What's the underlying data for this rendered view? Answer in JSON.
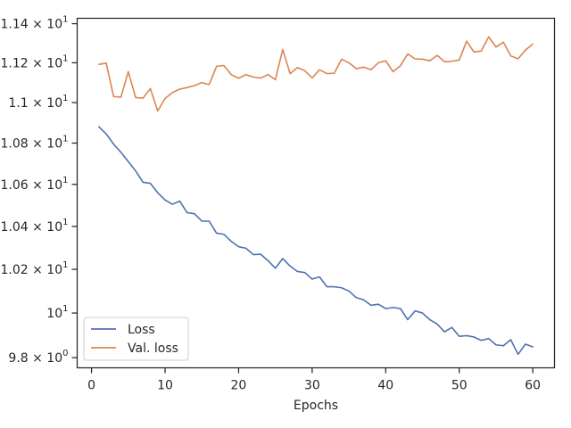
{
  "chart_data": {
    "type": "line",
    "xlabel": "Epochs",
    "ylabel": "",
    "title": "",
    "yscale": "log",
    "grid": false,
    "legend_position": "lower-left",
    "xlim": [
      -1.95,
      62.95
    ],
    "ylim": [
      9.755,
      11.428
    ],
    "x_ticks": [
      0,
      10,
      20,
      30,
      40,
      50,
      60
    ],
    "x_tick_labels": [
      "0",
      "10",
      "20",
      "30",
      "40",
      "50",
      "60"
    ],
    "y_ticks": [
      9.8,
      10.0,
      10.2,
      10.4,
      10.6,
      10.8,
      11.0,
      11.2,
      11.4
    ],
    "y_tick_labels": [
      {
        "mant": "9.8",
        "exp": "0"
      },
      {
        "mant": "",
        "exp": "1",
        "plain": "10"
      },
      {
        "mant": "1.02",
        "exp": "1"
      },
      {
        "mant": "1.04",
        "exp": "1"
      },
      {
        "mant": "1.06",
        "exp": "1"
      },
      {
        "mant": "1.08",
        "exp": "1"
      },
      {
        "mant": "1.1",
        "exp": "1"
      },
      {
        "mant": "1.12",
        "exp": "1"
      },
      {
        "mant": "1.14",
        "exp": "1"
      }
    ],
    "x": [
      1,
      2,
      3,
      4,
      5,
      6,
      7,
      8,
      9,
      10,
      11,
      12,
      13,
      14,
      15,
      16,
      17,
      18,
      19,
      20,
      21,
      22,
      23,
      24,
      25,
      26,
      27,
      28,
      29,
      30,
      31,
      32,
      33,
      34,
      35,
      36,
      37,
      38,
      39,
      40,
      41,
      42,
      43,
      44,
      45,
      46,
      47,
      48,
      49,
      50,
      51,
      52,
      53,
      54,
      55,
      56,
      57,
      58,
      59,
      60
    ],
    "series": [
      {
        "name": "Loss",
        "color": "#4c72b0",
        "values": [
          10.88,
          10.845,
          10.795,
          10.755,
          10.71,
          10.665,
          10.61,
          10.605,
          10.56,
          10.525,
          10.505,
          10.52,
          10.465,
          10.46,
          10.425,
          10.425,
          10.368,
          10.363,
          10.33,
          10.305,
          10.298,
          10.268,
          10.27,
          10.24,
          10.205,
          10.25,
          10.215,
          10.19,
          10.185,
          10.155,
          10.165,
          10.12,
          10.12,
          10.115,
          10.1,
          10.07,
          10.06,
          10.035,
          10.04,
          10.02,
          10.025,
          10.02,
          9.97,
          10.01,
          10.0,
          9.97,
          9.95,
          9.915,
          9.935,
          9.895,
          9.898,
          9.892,
          9.877,
          9.885,
          9.857,
          9.853,
          9.88,
          9.815,
          9.86,
          9.848
        ]
      },
      {
        "name": "Val. loss",
        "color": "#dd8452",
        "values": [
          11.192,
          11.198,
          11.03,
          11.027,
          11.155,
          11.025,
          11.022,
          11.07,
          10.958,
          11.02,
          11.05,
          11.067,
          11.075,
          11.085,
          11.1,
          11.09,
          11.182,
          11.186,
          11.14,
          11.122,
          11.14,
          11.128,
          11.123,
          11.14,
          11.115,
          11.268,
          11.145,
          11.176,
          11.16,
          11.123,
          11.165,
          11.145,
          11.147,
          11.218,
          11.2,
          11.17,
          11.178,
          11.165,
          11.2,
          11.21,
          11.155,
          11.185,
          11.245,
          11.22,
          11.218,
          11.21,
          11.238,
          11.205,
          11.208,
          11.214,
          11.31,
          11.255,
          11.26,
          11.332,
          11.28,
          11.305,
          11.235,
          11.22,
          11.265,
          11.295
        ]
      }
    ]
  }
}
